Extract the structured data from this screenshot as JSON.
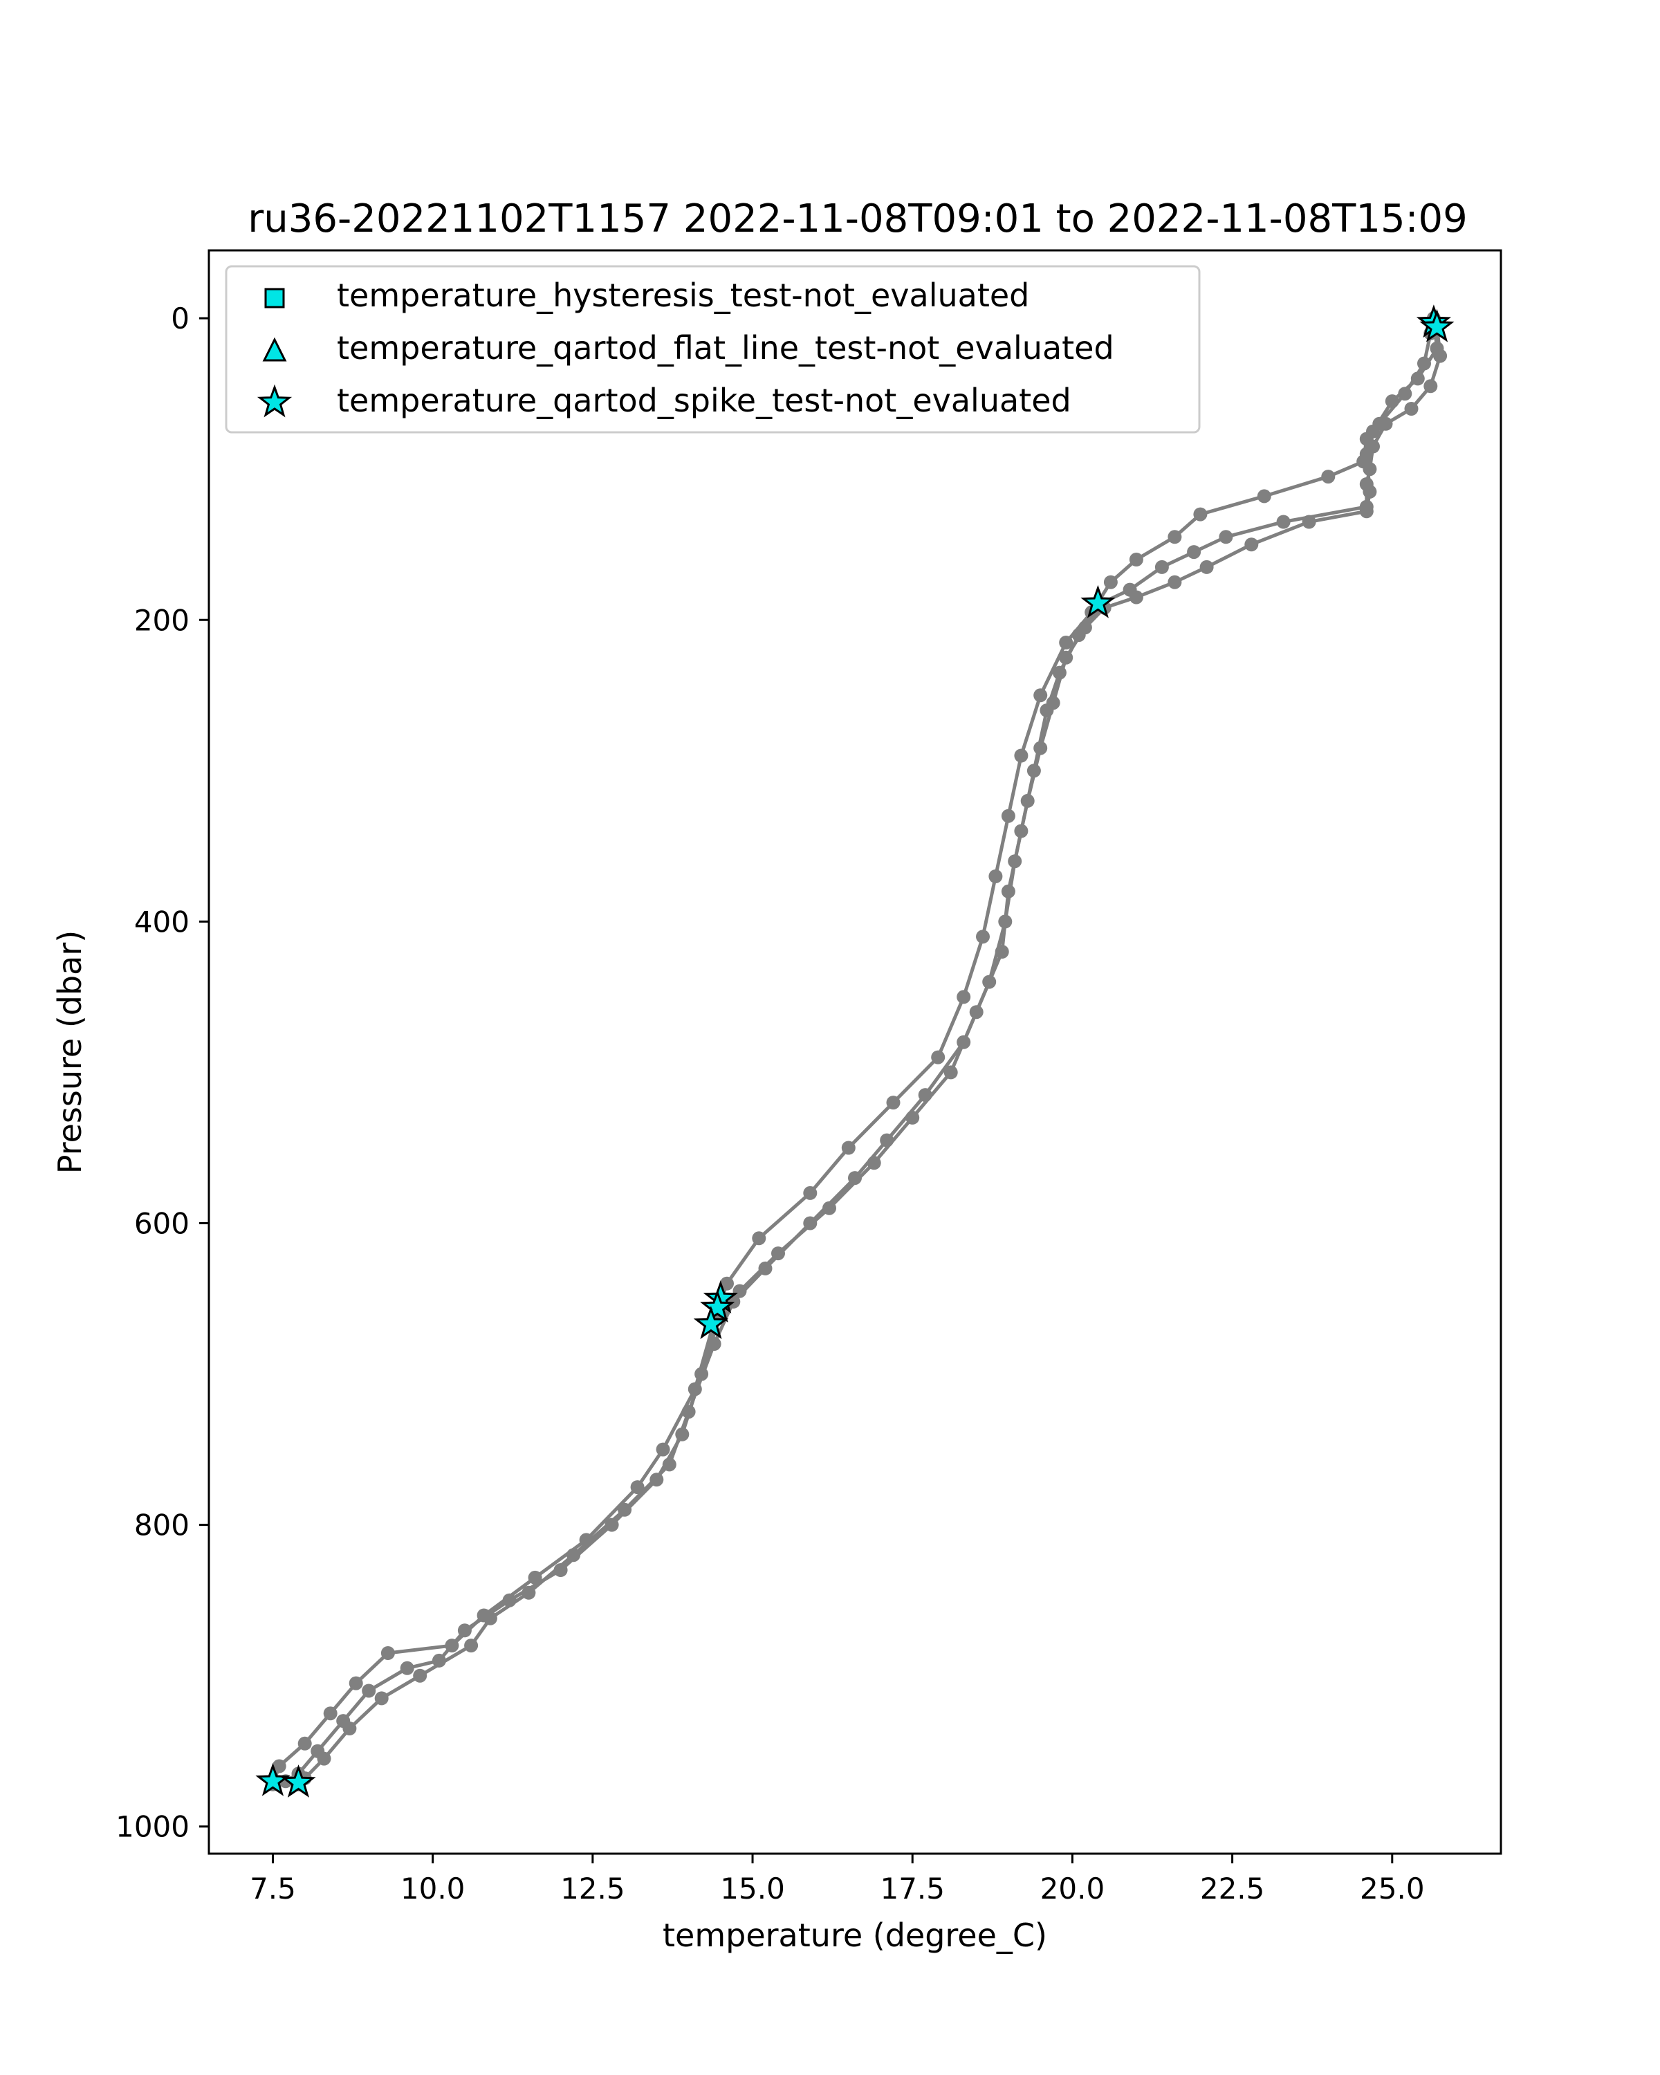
{
  "chart_data": {
    "type": "scatter",
    "title": "ru36-20221102T1157 2022-11-08T09:01 to 2022-11-08T15:09",
    "xlabel": "temperature (degree_C)",
    "ylabel": "Pressure (dbar)",
    "xlim": [
      6.5,
      26.7
    ],
    "ylim": [
      1018,
      -45
    ],
    "y_inverted": true,
    "grid": false,
    "legend_position": "top-left",
    "xticks": [
      "7.5",
      "10.0",
      "12.5",
      "15.0",
      "17.5",
      "20.0",
      "22.5",
      "25.0"
    ],
    "xtick_values": [
      7.5,
      10.0,
      12.5,
      15.0,
      17.5,
      20.0,
      22.5,
      25.0
    ],
    "yticks": [
      "0",
      "200",
      "400",
      "600",
      "800",
      "1000"
    ],
    "ytick_values": [
      0,
      200,
      400,
      600,
      800,
      1000
    ],
    "profile_color": "#808080",
    "flag_color": "#00e5e5",
    "profiles": [
      {
        "points": [
          [
            25.7,
            5
          ],
          [
            25.75,
            25
          ],
          [
            25.6,
            45
          ],
          [
            25.3,
            60
          ],
          [
            24.9,
            70
          ],
          [
            24.7,
            85
          ],
          [
            24.65,
            100
          ],
          [
            24.6,
            110
          ],
          [
            24.6,
            125
          ],
          [
            23.3,
            135
          ],
          [
            22.4,
            145
          ],
          [
            21.9,
            155
          ],
          [
            21.4,
            165
          ],
          [
            20.9,
            180
          ],
          [
            20.4,
            190
          ],
          [
            20.1,
            210
          ],
          [
            19.8,
            235
          ],
          [
            19.6,
            260
          ],
          [
            19.4,
            300
          ],
          [
            19.2,
            340
          ],
          [
            19.0,
            380
          ],
          [
            18.9,
            420
          ],
          [
            18.5,
            460
          ],
          [
            18.1,
            500
          ],
          [
            17.5,
            530
          ],
          [
            16.9,
            560
          ],
          [
            16.2,
            590
          ],
          [
            15.4,
            620
          ],
          [
            14.8,
            645
          ],
          [
            14.5,
            660
          ],
          [
            14.2,
            700
          ],
          [
            13.9,
            740
          ],
          [
            13.5,
            770
          ],
          [
            12.8,
            800
          ],
          [
            12.0,
            830
          ],
          [
            11.2,
            850
          ],
          [
            10.5,
            870
          ],
          [
            10.1,
            890
          ],
          [
            9.6,
            895
          ],
          [
            9.0,
            910
          ],
          [
            8.6,
            930
          ],
          [
            8.2,
            950
          ],
          [
            7.9,
            965
          ],
          [
            7.7,
            970
          ]
        ]
      },
      {
        "points": [
          [
            25.6,
            10
          ],
          [
            25.5,
            30
          ],
          [
            25.2,
            50
          ],
          [
            24.8,
            70
          ],
          [
            24.6,
            80
          ],
          [
            24.55,
            95
          ],
          [
            24.0,
            105
          ],
          [
            23.0,
            118
          ],
          [
            22.0,
            130
          ],
          [
            21.6,
            145
          ],
          [
            21.0,
            160
          ],
          [
            20.6,
            175
          ],
          [
            20.3,
            195
          ],
          [
            19.9,
            215
          ],
          [
            19.5,
            250
          ],
          [
            19.2,
            290
          ],
          [
            19.0,
            330
          ],
          [
            18.8,
            370
          ],
          [
            18.6,
            410
          ],
          [
            18.3,
            450
          ],
          [
            17.9,
            490
          ],
          [
            17.2,
            520
          ],
          [
            16.5,
            550
          ],
          [
            15.9,
            580
          ],
          [
            15.1,
            610
          ],
          [
            14.6,
            640
          ],
          [
            14.4,
            665
          ],
          [
            14.1,
            710
          ],
          [
            13.6,
            750
          ],
          [
            13.2,
            775
          ],
          [
            12.4,
            810
          ],
          [
            11.6,
            835
          ],
          [
            10.8,
            860
          ],
          [
            10.3,
            880
          ],
          [
            9.3,
            885
          ],
          [
            8.8,
            905
          ],
          [
            8.4,
            925
          ],
          [
            8.0,
            945
          ],
          [
            7.6,
            960
          ],
          [
            7.5,
            972
          ]
        ]
      },
      {
        "points": [
          [
            25.65,
            0
          ],
          [
            25.7,
            20
          ],
          [
            25.4,
            40
          ],
          [
            25.0,
            55
          ],
          [
            24.7,
            75
          ],
          [
            24.6,
            90
          ],
          [
            24.65,
            115
          ],
          [
            24.6,
            128
          ],
          [
            23.7,
            135
          ],
          [
            22.8,
            150
          ],
          [
            22.1,
            165
          ],
          [
            21.6,
            175
          ],
          [
            21.0,
            185
          ],
          [
            20.5,
            192
          ],
          [
            20.2,
            205
          ],
          [
            19.9,
            225
          ],
          [
            19.7,
            255
          ],
          [
            19.5,
            285
          ],
          [
            19.3,
            320
          ],
          [
            19.1,
            360
          ],
          [
            18.95,
            400
          ],
          [
            18.7,
            440
          ],
          [
            18.3,
            480
          ],
          [
            17.7,
            515
          ],
          [
            17.1,
            545
          ],
          [
            16.6,
            570
          ],
          [
            15.9,
            600
          ],
          [
            15.2,
            630
          ],
          [
            14.7,
            652
          ],
          [
            14.4,
            680
          ],
          [
            14.0,
            725
          ],
          [
            13.7,
            760
          ],
          [
            13.0,
            790
          ],
          [
            12.2,
            820
          ],
          [
            11.5,
            845
          ],
          [
            10.9,
            862
          ],
          [
            10.6,
            880
          ],
          [
            9.8,
            900
          ],
          [
            9.2,
            915
          ],
          [
            8.7,
            935
          ],
          [
            8.3,
            955
          ],
          [
            8.0,
            968
          ],
          [
            7.9,
            972
          ]
        ]
      }
    ],
    "series": [
      {
        "name": "temperature_hysteresis_test-not_evaluated",
        "marker": "square",
        "points": []
      },
      {
        "name": "temperature_qartod_flat_line_test-not_evaluated",
        "marker": "triangle",
        "points": []
      },
      {
        "name": "temperature_qartod_spike_test-not_evaluated",
        "marker": "star",
        "points": [
          [
            25.65,
            3
          ],
          [
            25.7,
            6
          ],
          [
            20.4,
            189
          ],
          [
            14.5,
            650
          ],
          [
            14.45,
            656
          ],
          [
            14.35,
            667
          ],
          [
            7.5,
            970
          ],
          [
            7.9,
            971
          ]
        ]
      }
    ]
  }
}
